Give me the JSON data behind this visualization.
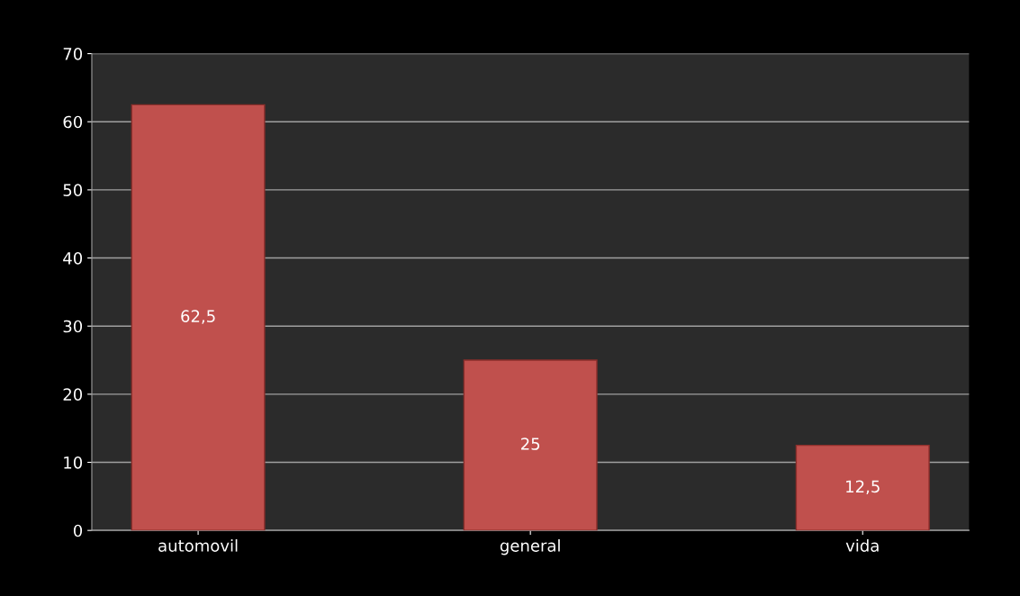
{
  "chart_data": {
    "type": "bar",
    "categories": [
      "automovil",
      "general",
      "vida"
    ],
    "values": [
      62.5,
      25,
      12.5
    ],
    "value_labels": [
      "62,5",
      "25",
      "12,5"
    ],
    "color": "#c0504d",
    "ylim": [
      0,
      70
    ],
    "yticks": [
      0,
      10,
      20,
      30,
      40,
      50,
      60,
      70
    ],
    "grid": "y",
    "legend": false
  }
}
